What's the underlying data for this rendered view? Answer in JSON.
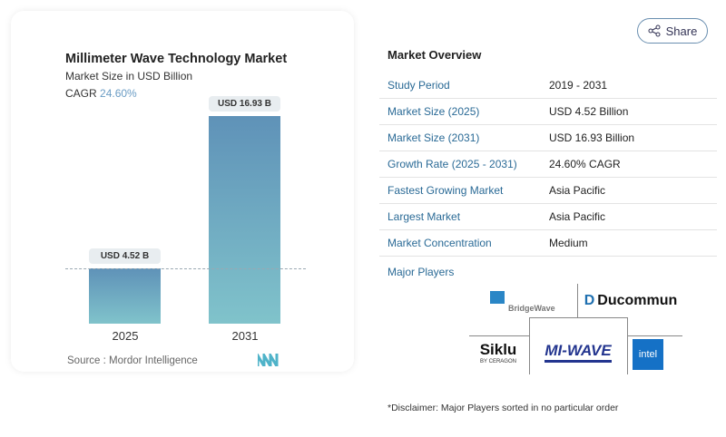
{
  "share": {
    "label": "Share",
    "icon": "share-icon"
  },
  "chart_data": {
    "type": "bar",
    "title": "Millimeter Wave Technology Market",
    "subtitle": "Market Size in USD Billion",
    "cagr_label": "CAGR",
    "cagr_value": "24.60%",
    "categories": [
      "2025",
      "2031"
    ],
    "values": [
      4.52,
      16.93
    ],
    "data_labels": [
      "USD 4.52 B",
      "USD 16.93 B"
    ],
    "colors": [
      "#5f92b8",
      "#80c3cb"
    ],
    "grid": false,
    "source": "Source :  Mordor Intelligence"
  },
  "overview": {
    "title": "Market Overview",
    "rows": [
      {
        "k": "Study Period",
        "v": "2019 - 2031"
      },
      {
        "k": "Market Size (2025)",
        "v": "USD 4.52 Billion"
      },
      {
        "k": "Market Size (2031)",
        "v": "USD 16.93 Billion"
      },
      {
        "k": "Growth Rate (2025 - 2031)",
        "v": "24.60% CAGR"
      },
      {
        "k": "Fastest Growing Market",
        "v": "Asia Pacific"
      },
      {
        "k": "Largest Market",
        "v": "Asia Pacific"
      },
      {
        "k": "Market Concentration",
        "v": "Medium"
      }
    ],
    "players_title": "Major Players",
    "players": [
      "BridgeWave",
      "Ducommun",
      "Siklu",
      "MI-WAVE",
      "intel"
    ],
    "disclaimer": "*Disclaimer: Major Players sorted in no particular order"
  }
}
